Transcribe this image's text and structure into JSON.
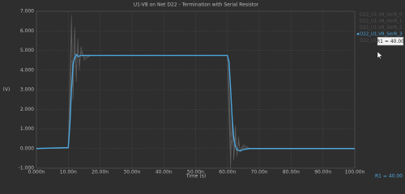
{
  "chart_data": {
    "type": "line",
    "title": "U1-V8 on Net D22 - Termination with Serial Resistor",
    "x_label": "Time (s)",
    "y_label": "(V)",
    "x": [
      0,
      10,
      10.5,
      11,
      11.5,
      12,
      12.5,
      13,
      13.5,
      14,
      15,
      17,
      60,
      60.5,
      61,
      61.5,
      62,
      62.5,
      63,
      63.5,
      64,
      65,
      67,
      100
    ],
    "series": [
      {
        "name": "D22_U1.V8_SerR_0",
        "color": "#5c5c5c",
        "values": [
          0,
          0,
          3.5,
          6.8,
          2.5,
          6.2,
          3.4,
          5.6,
          4.0,
          5.2,
          4.5,
          4.75,
          4.75,
          1.5,
          -1.0,
          1.8,
          -0.6,
          1.2,
          -0.4,
          0.6,
          -0.2,
          0.2,
          0,
          0
        ]
      },
      {
        "name": "D22_U1.V8_SerR_1",
        "color": "#5c5c5c",
        "values": [
          0,
          0,
          3.0,
          6.4,
          3.0,
          5.9,
          3.7,
          5.3,
          4.2,
          5.0,
          4.6,
          4.75,
          4.75,
          2.0,
          -0.5,
          1.4,
          -0.5,
          0.9,
          -0.3,
          0.4,
          -0.15,
          0.1,
          0,
          0
        ]
      },
      {
        "name": "D22_U1.V8_SerR_2",
        "color": "#5c5c5c",
        "values": [
          0,
          0,
          2.5,
          5.8,
          3.5,
          5.5,
          4.0,
          5.1,
          4.4,
          4.9,
          4.7,
          4.75,
          4.75,
          2.5,
          0,
          1.0,
          -0.3,
          0.6,
          -0.2,
          0.3,
          -0.1,
          0.1,
          0,
          0
        ]
      },
      {
        "name": "D22_U1.V8_SerR_3",
        "color": "#4da6dd",
        "values": [
          0,
          0.05,
          1.2,
          3.0,
          4.3,
          4.6,
          4.8,
          4.7,
          4.72,
          4.75,
          4.75,
          4.75,
          4.75,
          4.4,
          3.0,
          1.5,
          0.5,
          0.1,
          -0.05,
          -0.1,
          -0.12,
          -0.05,
          0,
          0
        ]
      },
      {
        "name": "D22_U1.V8_SerR_4",
        "color": "#5c5c5c",
        "values": [
          0,
          0,
          1.8,
          4.5,
          4.3,
          4.9,
          4.6,
          4.8,
          4.7,
          4.75,
          4.75,
          4.75,
          4.75,
          3.2,
          0.8,
          0.3,
          0,
          -0.1,
          0,
          0,
          0,
          0,
          0,
          0
        ]
      }
    ],
    "highlighted": "D22_U1.V8_SerR_3",
    "xlim": [
      0,
      100
    ],
    "xticks": [
      {
        "value": 0,
        "label": "0.000n"
      },
      {
        "value": 10,
        "label": "10.00n"
      },
      {
        "value": 20,
        "label": "20.00n"
      },
      {
        "value": 30,
        "label": "30.00n"
      },
      {
        "value": 40,
        "label": "40.00n"
      },
      {
        "value": 50,
        "label": "50.00n"
      },
      {
        "value": 60,
        "label": "60.00n"
      },
      {
        "value": 70,
        "label": "70.00n"
      },
      {
        "value": 80,
        "label": "80.00n"
      },
      {
        "value": 90,
        "label": "90.00n"
      },
      {
        "value": 100,
        "label": "100.00n"
      }
    ],
    "ylim": [
      -1,
      7
    ],
    "yticks": [
      {
        "value": -1,
        "label": "-1.000"
      },
      {
        "value": 0,
        "label": "0.000"
      },
      {
        "value": 1,
        "label": "1.000"
      },
      {
        "value": 2,
        "label": "2.000"
      },
      {
        "value": 3,
        "label": "3.000"
      },
      {
        "value": 4,
        "label": "4.000"
      },
      {
        "value": 5,
        "label": "5.000"
      },
      {
        "value": 6,
        "label": "6.000"
      },
      {
        "value": 7,
        "label": "7.000"
      }
    ],
    "grid": true,
    "tooltip": "R1 = 40.00",
    "status": "R1 = 40.00"
  }
}
